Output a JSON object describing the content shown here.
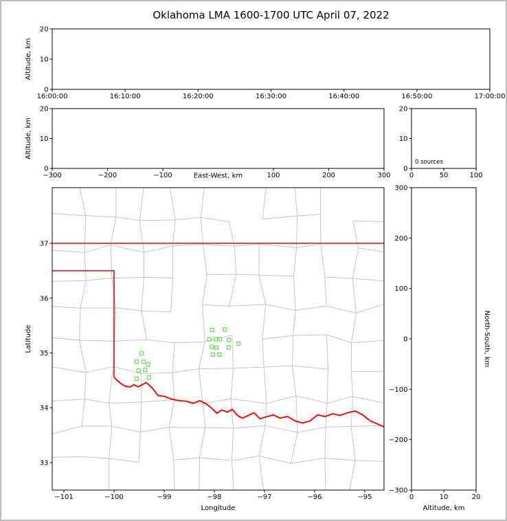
{
  "figure": {
    "title": "Oklahoma LMA 1600-1700 UTC April 07, 2022"
  },
  "colors": {
    "axis": "#000000",
    "label_text": "#000000",
    "county_line": "#c4c4c4",
    "state_border": "#ff0000",
    "station_edge": "#66dd55"
  },
  "chart_data": [
    {
      "id": "time_height",
      "type": "scatter",
      "xlabel": "",
      "ylabel": "Altitude, km",
      "xlim": [
        0,
        6
      ],
      "xticks": [
        {
          "v": 0,
          "label": "16:00:00"
        },
        {
          "v": 1,
          "label": "16:10:00"
        },
        {
          "v": 2,
          "label": "16:20:00"
        },
        {
          "v": 3,
          "label": "16:30:00"
        },
        {
          "v": 4,
          "label": "16:40:00"
        },
        {
          "v": 5,
          "label": "16:50:00"
        },
        {
          "v": 6,
          "label": "17:00:00"
        }
      ],
      "ylim": [
        0,
        20
      ],
      "yticks": [
        {
          "v": 0,
          "label": "0"
        },
        {
          "v": 10,
          "label": "10"
        },
        {
          "v": 20,
          "label": "20"
        }
      ],
      "points": []
    },
    {
      "id": "ew_height",
      "type": "scatter",
      "xlabel": "East-West, km",
      "ylabel": "Altitude, km",
      "xlim": [
        -300,
        300
      ],
      "xticks": [
        {
          "v": -300,
          "label": "−300"
        },
        {
          "v": -200,
          "label": "−200"
        },
        {
          "v": -100,
          "label": "−100"
        },
        {
          "v": 100,
          "label": "100"
        },
        {
          "v": 200,
          "label": "200"
        },
        {
          "v": 300,
          "label": "300"
        }
      ],
      "ylim": [
        0,
        20
      ],
      "yticks": [
        {
          "v": 0,
          "label": "0"
        },
        {
          "v": 10,
          "label": "10"
        },
        {
          "v": 20,
          "label": "20"
        }
      ],
      "points": []
    },
    {
      "id": "source_histogram",
      "type": "bar",
      "annotation": "0 sources",
      "xlim": [
        0,
        100
      ],
      "xticks": [
        {
          "v": 0,
          "label": "0"
        },
        {
          "v": 50,
          "label": "50"
        },
        {
          "v": 100,
          "label": "100"
        }
      ],
      "ylim": [
        0,
        20
      ],
      "yticks": [
        {
          "v": 0,
          "label": "0"
        },
        {
          "v": 10,
          "label": "10"
        },
        {
          "v": 20,
          "label": "20"
        }
      ],
      "values": []
    },
    {
      "id": "plan_view_map",
      "type": "scatter",
      "xlabel": "Longitude",
      "ylabel": "Latitude",
      "xlim": [
        -101.233,
        -94.616
      ],
      "xticks": [
        {
          "v": -101,
          "label": "−101"
        },
        {
          "v": -100,
          "label": "−100"
        },
        {
          "v": -99,
          "label": "−99"
        },
        {
          "v": -98,
          "label": "−98"
        },
        {
          "v": -97,
          "label": "−97"
        },
        {
          "v": -96,
          "label": "−96"
        },
        {
          "v": -95,
          "label": "−95"
        }
      ],
      "ylim": [
        32.498,
        38.016
      ],
      "yticks": [
        {
          "v": 33,
          "label": "33"
        },
        {
          "v": 34,
          "label": "34"
        },
        {
          "v": 35,
          "label": "35"
        },
        {
          "v": 36,
          "label": "36"
        },
        {
          "v": 37,
          "label": "37"
        }
      ],
      "county_grid": {
        "cols": 11,
        "rows": 10,
        "jitter": 0.15,
        "skip": 0.12
      },
      "state_border": [
        [
          [
            -101.233,
            37.0
          ],
          [
            -94.616,
            37.0
          ]
        ],
        [
          [
            -101.233,
            36.5
          ],
          [
            -100.0,
            36.5
          ],
          [
            -100.0,
            34.56
          ]
        ],
        [
          [
            -100.0,
            34.56
          ],
          [
            -99.94,
            34.5
          ],
          [
            -99.86,
            34.44
          ],
          [
            -99.77,
            34.39
          ],
          [
            -99.68,
            34.38
          ],
          [
            -99.6,
            34.42
          ],
          [
            -99.52,
            34.38
          ],
          [
            -99.44,
            34.42
          ],
          [
            -99.36,
            34.46
          ],
          [
            -99.28,
            34.4
          ],
          [
            -99.21,
            34.33
          ],
          [
            -99.12,
            34.22
          ],
          [
            -99.0,
            34.21
          ],
          [
            -98.86,
            34.16
          ],
          [
            -98.71,
            34.13
          ],
          [
            -98.56,
            34.12
          ],
          [
            -98.42,
            34.08
          ],
          [
            -98.29,
            34.13
          ],
          [
            -98.16,
            34.07
          ],
          [
            -98.05,
            33.99
          ],
          [
            -97.95,
            33.9
          ],
          [
            -97.85,
            33.96
          ],
          [
            -97.74,
            33.92
          ],
          [
            -97.64,
            33.97
          ],
          [
            -97.54,
            33.86
          ],
          [
            -97.44,
            33.81
          ],
          [
            -97.32,
            33.86
          ],
          [
            -97.21,
            33.91
          ],
          [
            -97.09,
            33.8
          ],
          [
            -96.94,
            33.84
          ],
          [
            -96.82,
            33.87
          ],
          [
            -96.69,
            33.81
          ],
          [
            -96.54,
            33.84
          ],
          [
            -96.39,
            33.76
          ],
          [
            -96.24,
            33.72
          ],
          [
            -96.09,
            33.76
          ],
          [
            -95.94,
            33.87
          ],
          [
            -95.79,
            33.84
          ],
          [
            -95.64,
            33.89
          ],
          [
            -95.49,
            33.86
          ],
          [
            -95.34,
            33.91
          ],
          [
            -95.19,
            33.94
          ],
          [
            -95.04,
            33.87
          ],
          [
            -94.89,
            33.76
          ],
          [
            -94.76,
            33.71
          ],
          [
            -94.616,
            33.65
          ]
        ]
      ],
      "stations": [
        [
          -98.04,
          35.42
        ],
        [
          -97.79,
          35.43
        ],
        [
          -98.1,
          35.25
        ],
        [
          -97.97,
          35.25
        ],
        [
          -97.89,
          35.25
        ],
        [
          -97.71,
          35.24
        ],
        [
          -97.52,
          35.17
        ],
        [
          -98.05,
          35.11
        ],
        [
          -97.96,
          35.1
        ],
        [
          -97.71,
          35.1
        ],
        [
          -98.03,
          34.97
        ],
        [
          -97.9,
          34.97
        ],
        [
          -99.45,
          34.99
        ],
        [
          -99.55,
          34.84
        ],
        [
          -99.41,
          34.84
        ],
        [
          -99.32,
          34.79
        ],
        [
          -99.51,
          34.68
        ],
        [
          -99.38,
          34.69
        ],
        [
          -99.55,
          34.53
        ],
        [
          -99.3,
          34.55
        ]
      ]
    },
    {
      "id": "ns_height",
      "type": "scatter",
      "xlabel": "Altitude, km",
      "ylabel_right": "North-South, km",
      "xlim": [
        0,
        20
      ],
      "xticks": [
        {
          "v": 0,
          "label": "0"
        },
        {
          "v": 10,
          "label": "10"
        },
        {
          "v": 20,
          "label": "20"
        }
      ],
      "ylim": [
        -300,
        300
      ],
      "yticks": [
        {
          "v": 300,
          "label": "300"
        },
        {
          "v": 200,
          "label": "200"
        },
        {
          "v": 100,
          "label": "100"
        },
        {
          "v": 0,
          "label": "0"
        },
        {
          "v": -100,
          "label": "−100"
        },
        {
          "v": -200,
          "label": "−200"
        },
        {
          "v": -300,
          "label": "−300"
        }
      ],
      "points": []
    }
  ]
}
